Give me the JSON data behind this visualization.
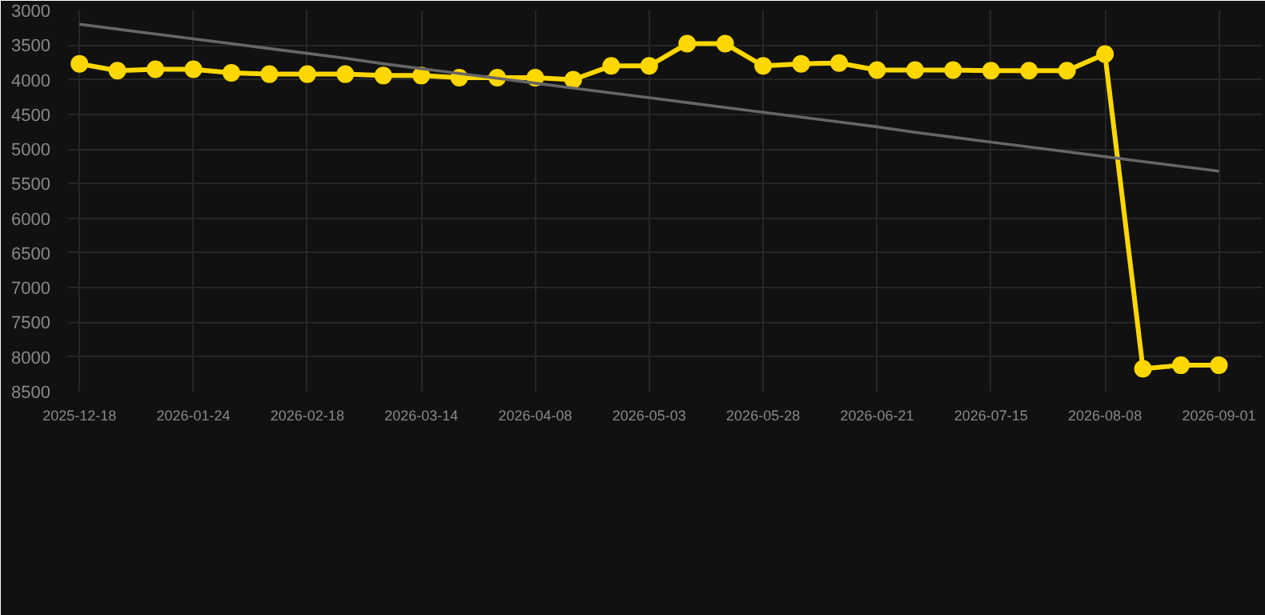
{
  "chart_data": {
    "type": "line",
    "categories": [
      "2025-12-18",
      null,
      null,
      "2026-01-24",
      null,
      null,
      "2026-02-18",
      null,
      null,
      "2026-03-14",
      null,
      null,
      "2026-04-08",
      null,
      null,
      "2026-05-03",
      null,
      null,
      "2026-05-28",
      null,
      null,
      "2026-06-21",
      null,
      null,
      "2026-07-15",
      null,
      null,
      "2026-08-08",
      null,
      null,
      "2026-09-01"
    ],
    "ylim": [
      8500,
      3000
    ],
    "yticks": [
      3000,
      3500,
      4000,
      4500,
      5000,
      5500,
      6000,
      6500,
      7000,
      7500,
      8000,
      8500
    ],
    "grid": true,
    "marker": "circle",
    "series": [
      {
        "color": "#ffd700",
        "values": [
          3770,
          3870,
          3850,
          3850,
          3900,
          3920,
          3920,
          3920,
          3940,
          3940,
          3970,
          3970,
          3970,
          4000,
          3800,
          3800,
          3480,
          3480,
          3800,
          3770,
          3760,
          3860,
          3860,
          3860,
          3870,
          3870,
          3870,
          3630,
          8170,
          8120,
          8120
        ]
      },
      {
        "type": "line",
        "marker": "none",
        "color": "#666666",
        "values": [
          3200,
          3270,
          3340,
          3410,
          3480,
          3550,
          3620,
          3690,
          3770,
          3840,
          3910,
          3980,
          4050,
          4120,
          4190,
          4260,
          4330,
          4400,
          4470,
          4540,
          4610,
          4680,
          4760,
          4830,
          4900,
          4970,
          5040,
          5110,
          5180,
          5250,
          5320
        ]
      }
    ]
  }
}
